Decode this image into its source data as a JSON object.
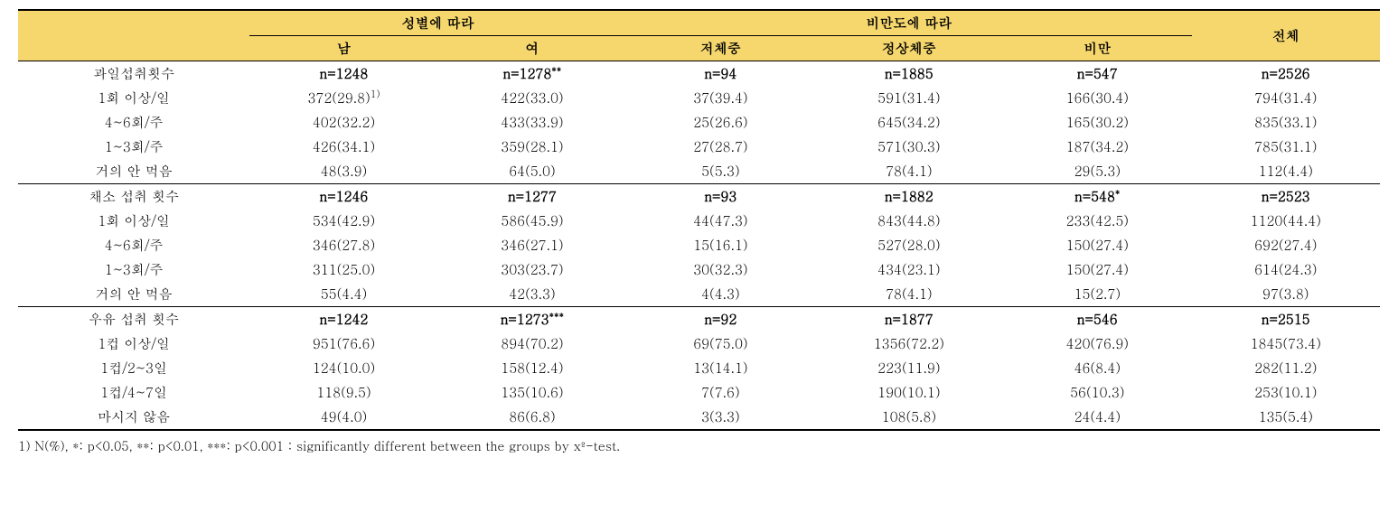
{
  "header": {
    "group_gender": "성별에 따라",
    "group_obesity": "비만도에 따라",
    "group_total": "전체",
    "male": "남",
    "female": "여",
    "underweight": "저체중",
    "normal": "정상체중",
    "obese": "비만"
  },
  "sections": [
    {
      "title": "과일섭취횟수",
      "n": {
        "male": "n=1248",
        "female": "n=1278",
        "female_sup": "**",
        "uw": "n=94",
        "nw": "n=1885",
        "ob": "n=547",
        "total": "n=2526"
      },
      "rows": [
        {
          "label": "1회 이상/일",
          "male": "372(29.8)",
          "male_sup": "1)",
          "female": "422(33.0)",
          "uw": "37(39.4)",
          "nw": "591(31.4)",
          "ob": "166(30.4)",
          "total": "794(31.4)"
        },
        {
          "label": "4~6회/주",
          "male": "402(32.2)",
          "female": "433(33.9)",
          "uw": "25(26.6)",
          "nw": "645(34.2)",
          "ob": "165(30.2)",
          "total": "835(33.1)"
        },
        {
          "label": "1~3회/주",
          "male": "426(34.1)",
          "female": "359(28.1)",
          "uw": "27(28.7)",
          "nw": "571(30.3)",
          "ob": "187(34.2)",
          "total": "785(31.1)"
        },
        {
          "label": "거의 안 먹음",
          "male": "48(3.9)",
          "female": "64(5.0)",
          "uw": "5(5.3)",
          "nw": "78(4.1)",
          "ob": "29(5.3)",
          "total": "112(4.4)"
        }
      ]
    },
    {
      "title": "채소 섭취 횟수",
      "n": {
        "male": "n=1246",
        "female": "n=1277",
        "uw": "n=93",
        "nw": "n=1882",
        "ob": "n=548",
        "ob_sup": "*",
        "total": "n=2523"
      },
      "rows": [
        {
          "label": "1회 이상/일",
          "male": "534(42.9)",
          "female": "586(45.9)",
          "uw": "44(47.3)",
          "nw": "843(44.8)",
          "ob": "233(42.5)",
          "total": "1120(44.4)"
        },
        {
          "label": "4~6회/주",
          "male": "346(27.8)",
          "female": "346(27.1)",
          "uw": "15(16.1)",
          "nw": "527(28.0)",
          "ob": "150(27.4)",
          "total": "692(27.4)"
        },
        {
          "label": "1~3회/주",
          "male": "311(25.0)",
          "female": "303(23.7)",
          "uw": "30(32.3)",
          "nw": "434(23.1)",
          "ob": "150(27.4)",
          "total": "614(24.3)"
        },
        {
          "label": "거의 안 먹음",
          "male": "55(4.4)",
          "female": "42(3.3)",
          "uw": "4(4.3)",
          "nw": "78(4.1)",
          "ob": "15(2.7)",
          "total": "97(3.8)"
        }
      ]
    },
    {
      "title": "우유 섭취 횟수",
      "n": {
        "male": "n=1242",
        "female": "n=1273",
        "female_sup": "***",
        "uw": "n=92",
        "nw": "n=1877",
        "ob": "n=546",
        "total": "n=2515"
      },
      "rows": [
        {
          "label": "1컵 이상/일",
          "male": "951(76.6)",
          "female": "894(70.2)",
          "uw": "69(75.0)",
          "nw": "1356(72.2)",
          "ob": "420(76.9)",
          "total": "1845(73.4)"
        },
        {
          "label": "1컵/2~3일",
          "male": "124(10.0)",
          "female": "158(12.4)",
          "uw": "13(14.1)",
          "nw": "223(11.9)",
          "ob": "46(8.4)",
          "total": "282(11.2)"
        },
        {
          "label": "1컵/4~7일",
          "male": "118(9.5)",
          "female": "135(10.6)",
          "uw": "7(7.6)",
          "nw": "190(10.1)",
          "ob": "56(10.3)",
          "total": "253(10.1)"
        },
        {
          "label": "마시지 않음",
          "male": "49(4.0)",
          "female": "86(6.8)",
          "uw": "3(3.3)",
          "nw": "108(5.8)",
          "ob": "24(4.4)",
          "total": "135(5.4)"
        }
      ]
    }
  ],
  "footnote": "1) N(%), *: p<0.05, **: p<0.01, ***: p<0.001 : significantly different between the groups by x²-test.",
  "style": {
    "header_bg": "#f5d76e",
    "border_color": "#000000",
    "font_family": "Batang, BatangChe, Times New Roman, serif",
    "font_size_pt": 15,
    "footnote_size_pt": 14
  }
}
